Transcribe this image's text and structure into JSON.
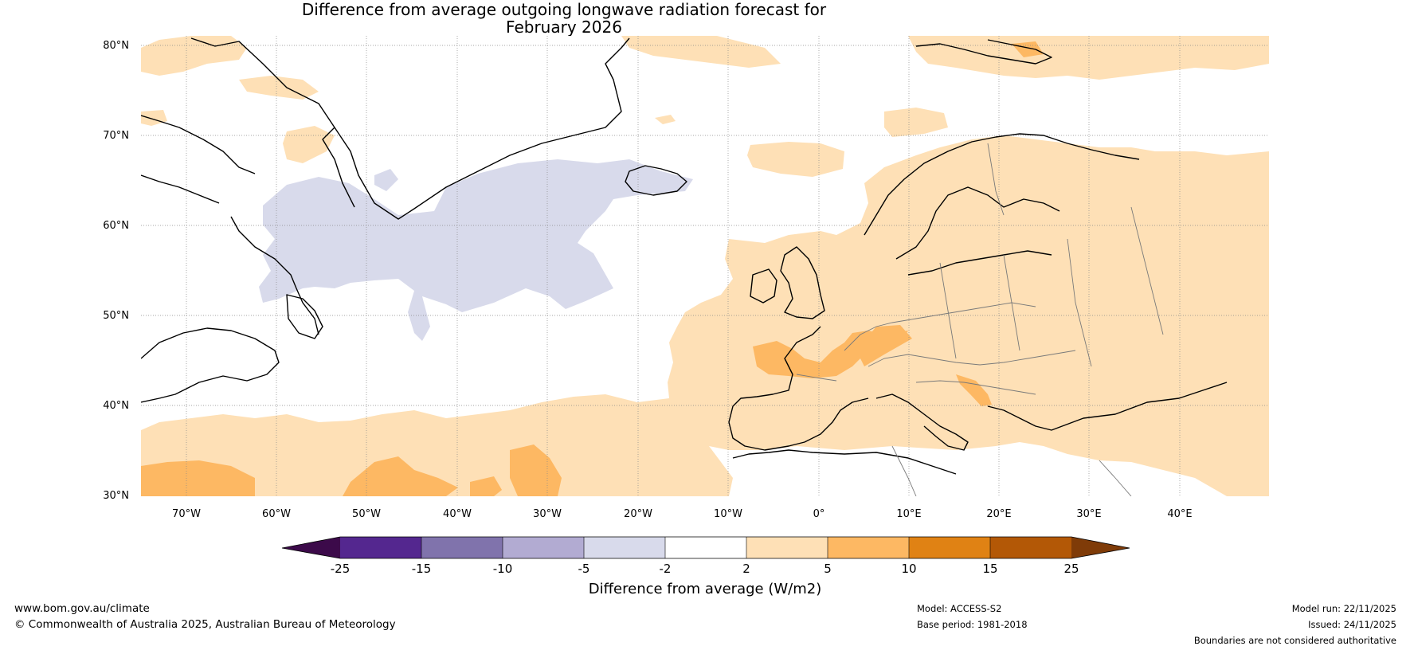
{
  "title": {
    "line1": "Difference from average outgoing longwave radiation forecast for",
    "line2": "February 2026"
  },
  "map": {
    "lat_labels": [
      "80°N",
      "70°N",
      "60°N",
      "50°N",
      "40°N",
      "30°N"
    ],
    "lon_labels": [
      "70°W",
      "60°W",
      "50°W",
      "40°W",
      "30°W",
      "20°W",
      "10°W",
      "0°",
      "10°E",
      "20°E",
      "30°E",
      "40°E"
    ],
    "lat_range": [
      30,
      80
    ],
    "lon_range": [
      -75,
      50
    ]
  },
  "colorbar": {
    "tick_labels": [
      "-25",
      "-15",
      "-10",
      "-5",
      "-2",
      "2",
      "5",
      "10",
      "15",
      "25"
    ],
    "colors": {
      "below_-25": "#3c0a4a",
      "-25_-15": "#54278f",
      "-15_-10": "#8073ac",
      "-10_-5": "#b2abd2",
      "-5_-2": "#d8daeb",
      "-2_2": "#ffffff",
      "2_5": "#fee0b6",
      "5_10": "#fdb863",
      "10_15": "#e08214",
      "15_25": "#b35806",
      "above_25": "#7f3b08"
    },
    "label": "Difference from average (W/m2)"
  },
  "footer": {
    "website": "www.bom.gov.au/climate",
    "copyright": "© Commonwealth of Australia 2025, Australian Bureau of Meteorology",
    "model": "Model: ACCESS-S2",
    "base_period": "Base period: 1981-2018",
    "model_run": "Model run: 22/11/2025",
    "issued": "Issued: 24/11/2025",
    "disclaimer": "Boundaries are not considered authoritative"
  }
}
